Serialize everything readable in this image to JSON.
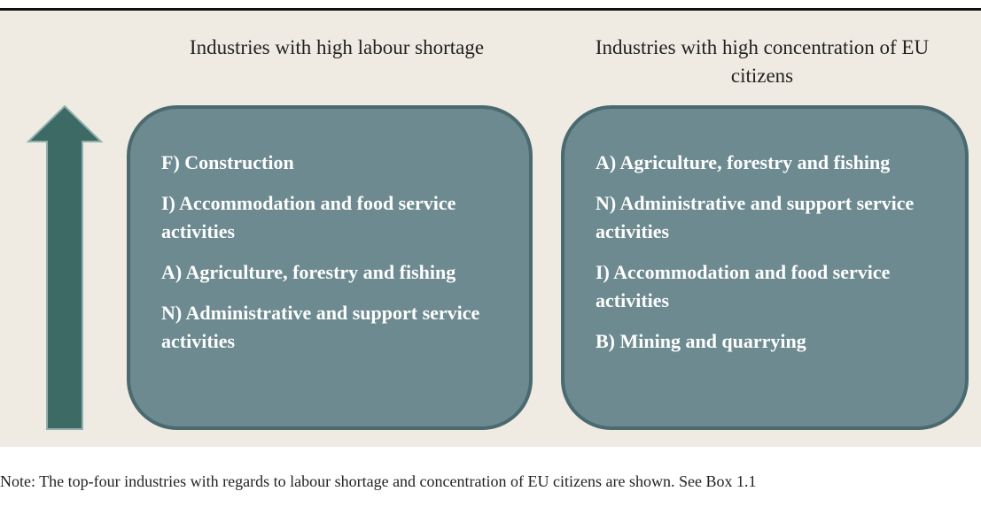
{
  "columns": [
    {
      "title": "Industries with high labour shortage",
      "items": [
        "F) Construction",
        "I) Accommodation and food service activities",
        "A) Agriculture, forestry and fishing",
        "N) Administrative and support service activities"
      ]
    },
    {
      "title": "Industries with high concentration of EU citizens",
      "items": [
        "A) Agriculture, forestry and fishing",
        "N) Administrative and support service activities",
        "I) Accommodation and food service activities",
        "B) Mining and quarrying"
      ]
    }
  ],
  "note": "Note: The top-four industries with regards to labour shortage and concentration of EU citizens are shown. See Box 1.1"
}
